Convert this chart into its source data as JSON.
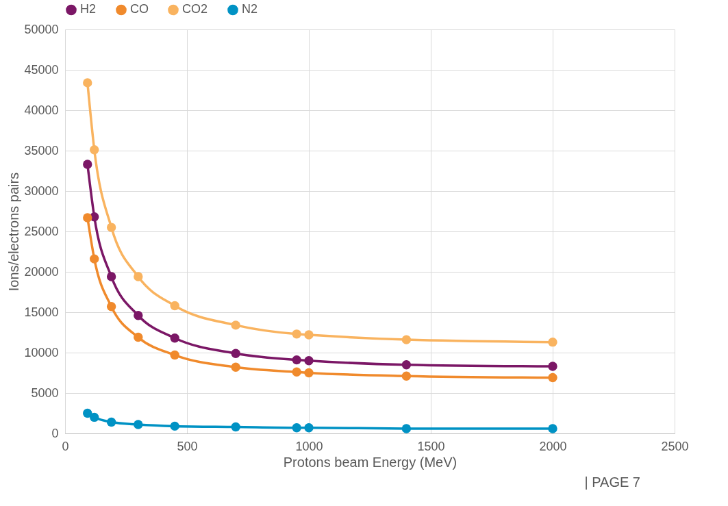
{
  "chart_data": {
    "type": "line",
    "xlabel": "Protons beam Energy (MeV)",
    "ylabel": "Ions/electrons pairs",
    "x": [
      92,
      120,
      190,
      300,
      450,
      700,
      950,
      1000,
      1400,
      2000
    ],
    "series": [
      {
        "name": "H2",
        "color": "#7b1766",
        "values": [
          33300,
          26800,
          19400,
          14600,
          11800,
          9900,
          9100,
          9000,
          8500,
          8300
        ]
      },
      {
        "name": "CO",
        "color": "#f08a2c",
        "values": [
          26700,
          21600,
          15700,
          11900,
          9700,
          8200,
          7600,
          7500,
          7100,
          6900
        ]
      },
      {
        "name": "CO2",
        "color": "#f9b35f",
        "values": [
          43400,
          35100,
          25500,
          19400,
          15800,
          13400,
          12300,
          12200,
          11600,
          11300
        ]
      },
      {
        "name": "N2",
        "color": "#0092c4",
        "values": [
          2500,
          2000,
          1400,
          1100,
          900,
          800,
          700,
          700,
          600,
          600
        ]
      }
    ],
    "xlim": [
      0,
      2500
    ],
    "xticks": [
      0,
      500,
      1000,
      1500,
      2000,
      2500
    ],
    "ylim": [
      0,
      50000
    ],
    "yticks": [
      0,
      5000,
      10000,
      15000,
      20000,
      25000,
      30000,
      35000,
      40000,
      45000,
      50000
    ],
    "grid": true,
    "legend": "top",
    "marker": "circle",
    "line_style": "solid",
    "annotations": [
      "| PAGE 7"
    ]
  }
}
